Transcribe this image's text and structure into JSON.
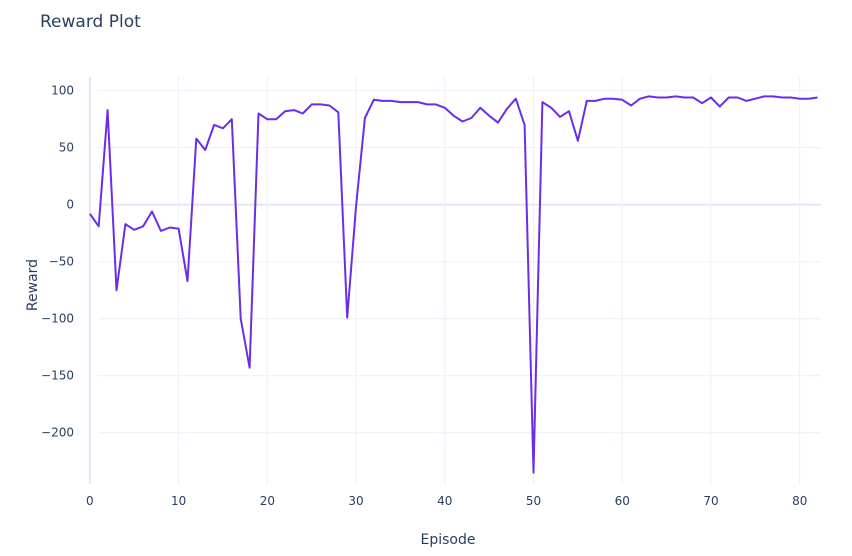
{
  "chart_data": {
    "type": "line",
    "title": "Reward Plot",
    "xlabel": "Episode",
    "ylabel": "Reward",
    "xlim": [
      -1,
      82.4
    ],
    "ylim": [
      -245,
      112
    ],
    "x_ticks": [
      0,
      10,
      20,
      30,
      40,
      50,
      60,
      70,
      80
    ],
    "y_ticks": [
      100,
      50,
      0,
      -50,
      -100,
      -150,
      -200
    ],
    "y_tick_labels": [
      "100",
      "50",
      "0",
      "−50",
      "−100",
      "−150",
      "−200"
    ],
    "grid": true,
    "legend": "none",
    "line_color": "#6b2ee8",
    "series": [
      {
        "x": [
          0,
          1,
          2,
          3,
          4,
          5,
          6,
          7,
          8,
          9,
          10,
          11,
          12,
          13,
          14,
          15,
          16,
          17,
          18,
          19,
          20,
          21,
          22,
          23,
          24,
          25,
          26,
          27,
          28,
          29,
          30,
          31,
          32,
          33,
          34,
          35,
          36,
          37,
          38,
          39,
          40,
          41,
          42,
          43,
          44,
          45,
          46,
          47,
          48,
          49,
          50,
          51,
          52,
          53,
          54,
          55,
          56,
          57,
          58,
          59,
          60,
          61,
          62,
          63,
          64,
          65,
          66,
          67,
          68,
          69,
          70,
          71,
          72,
          73,
          74,
          75,
          76,
          77,
          78,
          79,
          80,
          81,
          82
        ],
        "values": [
          -8,
          -19,
          83,
          -75,
          -17,
          -22,
          -19,
          -6,
          -23,
          -20,
          -21,
          -67,
          58,
          48,
          70,
          67,
          75,
          -100,
          -143,
          80,
          75,
          75,
          82,
          83,
          80,
          88,
          88,
          87,
          81,
          -99,
          -1,
          76,
          92,
          91,
          91,
          90,
          90,
          90,
          88,
          88,
          85,
          78,
          73,
          76,
          85,
          78,
          72,
          84,
          93,
          70,
          -235,
          90,
          85,
          77,
          82,
          56,
          91,
          91,
          93,
          93,
          92,
          87,
          93,
          95,
          94,
          94,
          95,
          94,
          94,
          89,
          94,
          86,
          94,
          94,
          91,
          93,
          95,
          95,
          94,
          94,
          93,
          93,
          94
        ]
      }
    ]
  }
}
